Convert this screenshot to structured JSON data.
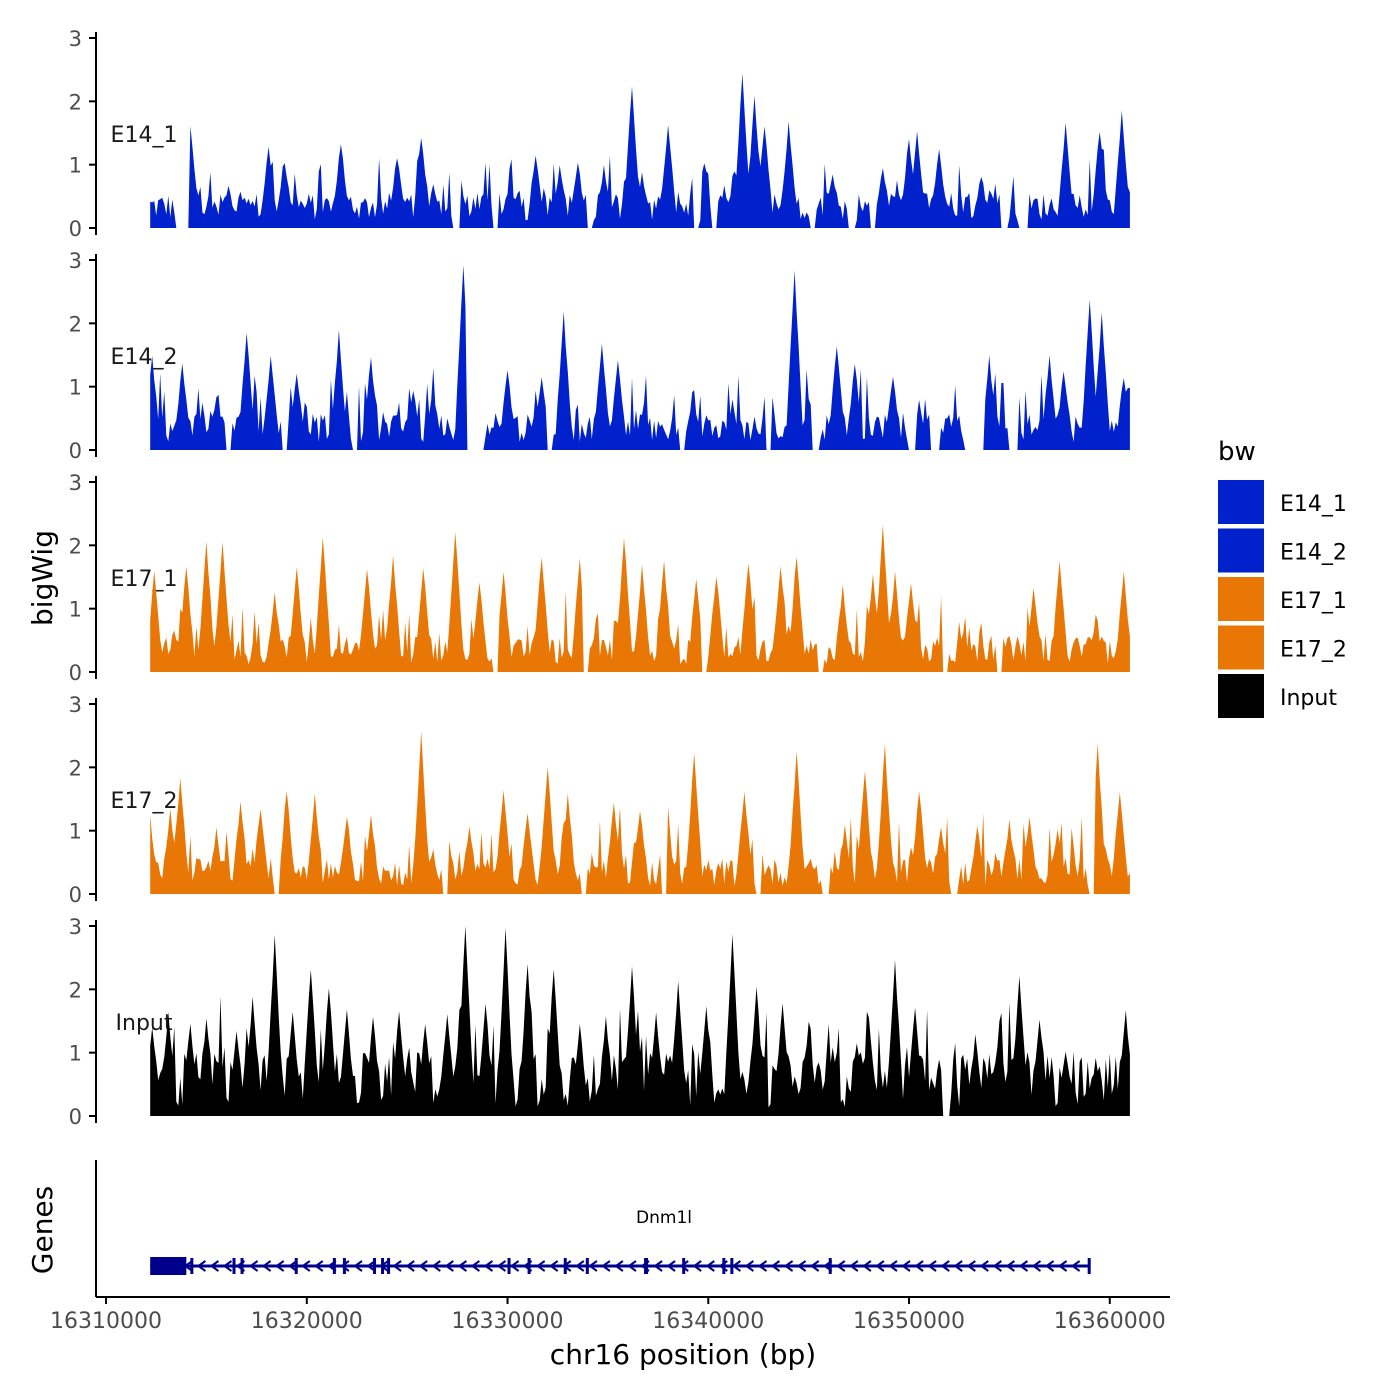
{
  "chart_data": {
    "type": "area",
    "chromosome": "chr16",
    "xlabel": "chr16 position (bp)",
    "ylabel": "bigWig",
    "genes_label": "Genes",
    "xlim": [
      16309500,
      16363000
    ],
    "x_ticks": [
      16310000,
      16320000,
      16330000,
      16340000,
      16350000,
      16360000
    ],
    "x_tick_labels": [
      "16310000",
      "16320000",
      "16330000",
      "16340000",
      "16350000",
      "16360000"
    ],
    "ylim": [
      0,
      3
    ],
    "y_ticks": [
      0,
      1,
      2,
      3
    ],
    "y_tick_labels": [
      "0",
      "1",
      "2",
      "3"
    ],
    "signal_range": [
      16312200,
      16361000
    ],
    "legend": {
      "title": "bw",
      "entries": [
        {
          "label": "E14_1",
          "color": "#0021CC"
        },
        {
          "label": "E14_2",
          "color": "#0021CC"
        },
        {
          "label": "E17_1",
          "color": "#E87706"
        },
        {
          "label": "E17_2",
          "color": "#E87706"
        },
        {
          "label": "Input",
          "color": "#000000"
        }
      ]
    },
    "series": [
      {
        "name": "E14_1",
        "color": "#0021CC",
        "peaks": [
          [
            16314200,
            1.6
          ],
          [
            16316100,
            0.6
          ],
          [
            16318100,
            1.2
          ],
          [
            16318900,
            1.0
          ],
          [
            16321700,
            1.3
          ],
          [
            16324500,
            1.1
          ],
          [
            16325700,
            1.4
          ],
          [
            16326300,
            0.6
          ],
          [
            16327600,
            0.9
          ],
          [
            16330100,
            0.6
          ],
          [
            16331400,
            1.1
          ],
          [
            16332600,
            0.9
          ],
          [
            16333500,
            1.0
          ],
          [
            16334800,
            0.9
          ],
          [
            16336200,
            2.2
          ],
          [
            16336700,
            0.8
          ],
          [
            16338000,
            1.6
          ],
          [
            16340800,
            0.6
          ],
          [
            16341700,
            2.4
          ],
          [
            16342300,
            2.0
          ],
          [
            16342800,
            1.6
          ],
          [
            16344000,
            1.6
          ],
          [
            16346200,
            0.8
          ],
          [
            16348700,
            0.9
          ],
          [
            16350000,
            1.4
          ],
          [
            16350400,
            1.5
          ],
          [
            16351500,
            1.2
          ],
          [
            16353600,
            0.8
          ],
          [
            16357800,
            1.6
          ],
          [
            16359500,
            1.5
          ],
          [
            16360600,
            1.8
          ]
        ],
        "gaps": [
          [
            16313500,
            16314100
          ],
          [
            16327300,
            16327600
          ],
          [
            16329300,
            16329500
          ],
          [
            16334000,
            16334200
          ],
          [
            16339300,
            16339500
          ],
          [
            16340200,
            16340400
          ],
          [
            16345100,
            16345300
          ],
          [
            16347000,
            16347300
          ],
          [
            16348100,
            16348300
          ],
          [
            16354600,
            16354900
          ],
          [
            16355500,
            16355900
          ]
        ]
      },
      {
        "name": "E14_2",
        "color": "#0021CC",
        "peaks": [
          [
            16312300,
            1.4
          ],
          [
            16313800,
            1.3
          ],
          [
            16315500,
            0.8
          ],
          [
            16317000,
            1.8
          ],
          [
            16318200,
            1.4
          ],
          [
            16319500,
            1.2
          ],
          [
            16321600,
            1.8
          ],
          [
            16323200,
            1.4
          ],
          [
            16325300,
            0.9
          ],
          [
            16326300,
            0.9
          ],
          [
            16327800,
            2.9
          ],
          [
            16330000,
            1.2
          ],
          [
            16331700,
            1.1
          ],
          [
            16332800,
            2.1
          ],
          [
            16334700,
            1.6
          ],
          [
            16335500,
            1.4
          ],
          [
            16336800,
            0.7
          ],
          [
            16339200,
            0.7
          ],
          [
            16341200,
            0.7
          ],
          [
            16343000,
            1.4
          ],
          [
            16344300,
            2.8
          ],
          [
            16346400,
            1.6
          ],
          [
            16347300,
            1.3
          ],
          [
            16349200,
            1.1
          ],
          [
            16350500,
            0.7
          ],
          [
            16352300,
            0.5
          ],
          [
            16354000,
            1.4
          ],
          [
            16357000,
            1.4
          ],
          [
            16357700,
            1.2
          ],
          [
            16359000,
            2.3
          ],
          [
            16359600,
            2.1
          ],
          [
            16360700,
            1.1
          ]
        ],
        "gaps": [
          [
            16316000,
            16316200
          ],
          [
            16318800,
            16319000
          ],
          [
            16322300,
            16322500
          ],
          [
            16328000,
            16328800
          ],
          [
            16332000,
            16332200
          ],
          [
            16338600,
            16338800
          ],
          [
            16342900,
            16343100
          ],
          [
            16345200,
            16345500
          ],
          [
            16350000,
            16350300
          ],
          [
            16351100,
            16351500
          ],
          [
            16352800,
            16353700
          ],
          [
            16355000,
            16355400
          ]
        ]
      },
      {
        "name": "E17_1",
        "color": "#E87706",
        "peaks": [
          [
            16312400,
            1.5
          ],
          [
            16314000,
            1.6
          ],
          [
            16315000,
            2.0
          ],
          [
            16315800,
            2.0
          ],
          [
            16318400,
            1.2
          ],
          [
            16319500,
            1.6
          ],
          [
            16320800,
            2.1
          ],
          [
            16323000,
            1.6
          ],
          [
            16324300,
            1.8
          ],
          [
            16325800,
            1.6
          ],
          [
            16327400,
            2.2
          ],
          [
            16328600,
            1.4
          ],
          [
            16329800,
            1.5
          ],
          [
            16331700,
            1.8
          ],
          [
            16333600,
            1.7
          ],
          [
            16335800,
            2.1
          ],
          [
            16336700,
            1.6
          ],
          [
            16337800,
            1.7
          ],
          [
            16339400,
            1.4
          ],
          [
            16340400,
            1.5
          ],
          [
            16342000,
            1.7
          ],
          [
            16343600,
            1.6
          ],
          [
            16344400,
            1.8
          ],
          [
            16346700,
            1.3
          ],
          [
            16348200,
            1.5
          ],
          [
            16348700,
            2.3
          ],
          [
            16349300,
            1.5
          ],
          [
            16350100,
            1.4
          ],
          [
            16351400,
            0.5
          ],
          [
            16352700,
            0.6
          ],
          [
            16356200,
            1.3
          ],
          [
            16357500,
            1.7
          ],
          [
            16359300,
            0.8
          ],
          [
            16360700,
            1.5
          ]
        ],
        "gaps": [
          [
            16329300,
            16329500
          ],
          [
            16333800,
            16334000
          ],
          [
            16339700,
            16339900
          ],
          [
            16345500,
            16345700
          ],
          [
            16351700,
            16351900
          ],
          [
            16354400,
            16354600
          ]
        ]
      },
      {
        "name": "E17_2",
        "color": "#E87706",
        "peaks": [
          [
            16312300,
            0.8
          ],
          [
            16313200,
            1.3
          ],
          [
            16313700,
            1.8
          ],
          [
            16315500,
            0.9
          ],
          [
            16316700,
            1.4
          ],
          [
            16317700,
            1.3
          ],
          [
            16319000,
            1.6
          ],
          [
            16320400,
            1.5
          ],
          [
            16322000,
            1.2
          ],
          [
            16323200,
            1.2
          ],
          [
            16325700,
            2.5
          ],
          [
            16327000,
            1.0
          ],
          [
            16328100,
            1.0
          ],
          [
            16329800,
            1.6
          ],
          [
            16331000,
            1.2
          ],
          [
            16332000,
            2.0
          ],
          [
            16333000,
            1.5
          ],
          [
            16335300,
            1.4
          ],
          [
            16336600,
            1.3
          ],
          [
            16337900,
            1.7
          ],
          [
            16339300,
            2.2
          ],
          [
            16341800,
            1.6
          ],
          [
            16344400,
            2.2
          ],
          [
            16345100,
            0.5
          ],
          [
            16346800,
            1.0
          ],
          [
            16347800,
            1.9
          ],
          [
            16348800,
            2.3
          ],
          [
            16350500,
            1.6
          ],
          [
            16351600,
            1.0
          ],
          [
            16353400,
            1.0
          ],
          [
            16355000,
            1.1
          ],
          [
            16356000,
            1.2
          ],
          [
            16357400,
            1.0
          ],
          [
            16359400,
            2.3
          ],
          [
            16360500,
            1.6
          ]
        ],
        "gaps": [
          [
            16318400,
            16318600
          ],
          [
            16326800,
            16327000
          ],
          [
            16333700,
            16333900
          ],
          [
            16337700,
            16337900
          ],
          [
            16342400,
            16342600
          ],
          [
            16345700,
            16346000
          ],
          [
            16352100,
            16352400
          ],
          [
            16359000,
            16359200
          ]
        ]
      },
      {
        "name": "Input",
        "color": "#000000",
        "peaks": [
          [
            16312300,
            1.4
          ],
          [
            16313100,
            1.6
          ],
          [
            16314200,
            1.4
          ],
          [
            16315000,
            1.5
          ],
          [
            16316500,
            1.3
          ],
          [
            16317300,
            1.8
          ],
          [
            16318400,
            2.8
          ],
          [
            16319300,
            1.6
          ],
          [
            16320200,
            2.3
          ],
          [
            16321100,
            2.0
          ],
          [
            16322000,
            1.6
          ],
          [
            16323300,
            1.5
          ],
          [
            16324600,
            1.6
          ],
          [
            16325900,
            1.4
          ],
          [
            16327000,
            1.6
          ],
          [
            16327900,
            3.0
          ],
          [
            16328900,
            1.7
          ],
          [
            16329900,
            2.9
          ],
          [
            16331000,
            2.4
          ],
          [
            16332300,
            2.3
          ],
          [
            16333600,
            1.4
          ],
          [
            16334900,
            1.5
          ],
          [
            16336200,
            2.3
          ],
          [
            16337400,
            1.6
          ],
          [
            16338500,
            2.1
          ],
          [
            16339900,
            1.7
          ],
          [
            16341200,
            2.8
          ],
          [
            16342400,
            2.0
          ],
          [
            16343700,
            1.7
          ],
          [
            16345000,
            1.4
          ],
          [
            16346200,
            1.0
          ],
          [
            16347400,
            1.1
          ],
          [
            16348000,
            1.5
          ],
          [
            16349300,
            2.4
          ],
          [
            16350300,
            1.7
          ],
          [
            16351800,
            1.0
          ],
          [
            16353300,
            1.2
          ],
          [
            16354500,
            1.4
          ],
          [
            16355500,
            2.2
          ],
          [
            16356500,
            1.5
          ],
          [
            16357800,
            1.0
          ],
          [
            16359300,
            0.8
          ],
          [
            16360800,
            1.6
          ]
        ],
        "gaps": [
          [
            16351700,
            16352000
          ]
        ]
      }
    ],
    "gene": {
      "name": "Dnm1l",
      "start": 16312200,
      "end": 16359000,
      "strand": "-",
      "exons": [
        [
          16312200,
          16314000
        ],
        [
          16314200,
          16314300
        ],
        [
          16316300,
          16316400
        ],
        [
          16316700,
          16316800
        ],
        [
          16319400,
          16319500
        ],
        [
          16321300,
          16321400
        ],
        [
          16321800,
          16321900
        ],
        [
          16323300,
          16323400
        ],
        [
          16323700,
          16323800
        ],
        [
          16324000,
          16324100
        ],
        [
          16330000,
          16330100
        ],
        [
          16331000,
          16331100
        ],
        [
          16332800,
          16332900
        ],
        [
          16333900,
          16334000
        ],
        [
          16336800,
          16337000
        ],
        [
          16338700,
          16338800
        ],
        [
          16340700,
          16340800
        ],
        [
          16341100,
          16341200
        ],
        [
          16346000,
          16346100
        ],
        [
          16358900,
          16359000
        ]
      ]
    }
  }
}
